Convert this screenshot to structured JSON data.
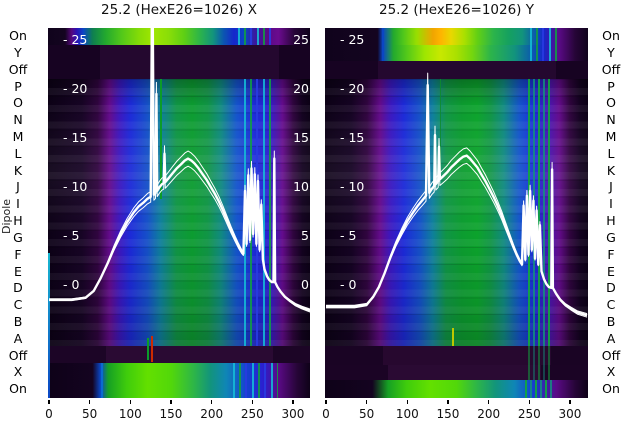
{
  "figure": {
    "background": "#ffffff",
    "ylabel": "Dipole"
  },
  "chart_data": {
    "type": "heatmap+line",
    "row_labels": [
      "On",
      "Y",
      "Off",
      "P",
      "O",
      "N",
      "M",
      "L",
      "K",
      "J",
      "I",
      "H",
      "G",
      "F",
      "E",
      "D",
      "C",
      "B",
      "A",
      "Off",
      "X",
      "On"
    ],
    "x_ticks": [
      0,
      50,
      100,
      150,
      200,
      250,
      300
    ],
    "x_range": [
      0,
      321
    ],
    "y_ticks": [
      25,
      20,
      15,
      10,
      5,
      0
    ],
    "y_tick_prefix": "- ",
    "y_range": [
      -11.3,
      26.4
    ],
    "grid": false,
    "colormap_palette": [
      "#0c0116",
      "#30053f",
      "#640b8c",
      "#1c2ad8",
      "#1550c8",
      "#0e7f9b",
      "#109546",
      "#0c9c30",
      "#63e000",
      "#9fe600",
      "#e8d800",
      "#f0a500"
    ],
    "line_color": "#ffffff",
    "panels": [
      {
        "title": "25.2 (HexE26=1026) X",
        "right_inner_labels": true,
        "line_series": {
          "name": "white-overlay-trace",
          "points": [
            [
              0,
              -1.5
            ],
            [
              28,
              -1.5
            ],
            [
              45,
              -1.3
            ],
            [
              55,
              -0.6
            ],
            [
              63,
              0.6
            ],
            [
              72,
              2.2
            ],
            [
              80,
              3.8
            ],
            [
              88,
              5.2
            ],
            [
              96,
              6.4
            ],
            [
              104,
              7.4
            ],
            [
              110,
              8.0
            ],
            [
              116,
              8.4
            ],
            [
              121,
              8.8
            ],
            [
              125,
              9.0
            ],
            [
              127,
              34
            ],
            [
              129,
              9.2
            ],
            [
              131,
              9.4
            ],
            [
              132,
              19.5
            ],
            [
              133,
              9.6
            ],
            [
              136,
              10.0
            ],
            [
              139,
              10.3
            ],
            [
              141,
              10.4
            ],
            [
              142,
              13.4
            ],
            [
              143,
              10.5
            ],
            [
              147,
              10.9
            ],
            [
              152,
              11.4
            ],
            [
              157,
              11.9
            ],
            [
              162,
              12.3
            ],
            [
              167,
              12.7
            ],
            [
              171,
              12.9
            ],
            [
              175,
              12.7
            ],
            [
              179,
              12.4
            ],
            [
              184,
              11.9
            ],
            [
              189,
              11.3
            ],
            [
              194,
              10.7
            ],
            [
              199,
              10.0
            ],
            [
              204,
              9.3
            ],
            [
              209,
              8.5
            ],
            [
              214,
              7.6
            ],
            [
              219,
              6.6
            ],
            [
              224,
              5.6
            ],
            [
              229,
              4.7
            ],
            [
              233,
              4.0
            ],
            [
              237,
              3.4
            ],
            [
              239,
              3.2
            ],
            [
              241,
              9.6
            ],
            [
              243,
              4.2
            ],
            [
              245,
              11.2
            ],
            [
              247,
              4.6
            ],
            [
              249,
              11.9
            ],
            [
              251,
              5.2
            ],
            [
              253,
              11.3
            ],
            [
              255,
              4.2
            ],
            [
              257,
              10.6
            ],
            [
              259,
              3.6
            ],
            [
              261,
              8.2
            ],
            [
              263,
              2.6
            ],
            [
              265,
              1.6
            ],
            [
              268,
              0.9
            ],
            [
              271,
              0.5
            ],
            [
              274,
              0.3
            ],
            [
              276,
              0.3
            ],
            [
              277,
              12.9
            ],
            [
              278,
              0.3
            ],
            [
              281,
              -0.2
            ],
            [
              285,
              -0.7
            ],
            [
              290,
              -1.2
            ],
            [
              296,
              -1.6
            ],
            [
              303,
              -2.0
            ],
            [
              311,
              -2.3
            ],
            [
              321,
              -2.6
            ]
          ]
        }
      },
      {
        "title": "25.2 (HexE26=1026) Y",
        "right_inner_labels": false,
        "line_series": {
          "name": "white-overlay-trace",
          "points": [
            [
              0,
              -2.2
            ],
            [
              35,
              -2.2
            ],
            [
              50,
              -2.0
            ],
            [
              58,
              -1.2
            ],
            [
              65,
              -0.2
            ],
            [
              72,
              1.2
            ],
            [
              79,
              2.8
            ],
            [
              86,
              4.2
            ],
            [
              93,
              5.4
            ],
            [
              100,
              6.5
            ],
            [
              107,
              7.4
            ],
            [
              113,
              8.1
            ],
            [
              119,
              8.7
            ],
            [
              123,
              9.1
            ],
            [
              125,
              20.4
            ],
            [
              127,
              9.4
            ],
            [
              130,
              9.8
            ],
            [
              133,
              10.1
            ],
            [
              134,
              15.3
            ],
            [
              135,
              10.3
            ],
            [
              138,
              10.6
            ],
            [
              139,
              14.1
            ],
            [
              140,
              10.8
            ],
            [
              144,
              11.1
            ],
            [
              149,
              11.5
            ],
            [
              154,
              12.0
            ],
            [
              159,
              12.4
            ],
            [
              164,
              12.8
            ],
            [
              169,
              13.1
            ],
            [
              173,
              13.2
            ],
            [
              177,
              12.9
            ],
            [
              181,
              12.5
            ],
            [
              186,
              12.0
            ],
            [
              191,
              11.3
            ],
            [
              196,
              10.6
            ],
            [
              201,
              9.8
            ],
            [
              206,
              9.0
            ],
            [
              211,
              8.1
            ],
            [
              216,
              7.1
            ],
            [
              221,
              6.0
            ],
            [
              226,
              4.9
            ],
            [
              230,
              4.0
            ],
            [
              234,
              3.2
            ],
            [
              238,
              2.5
            ],
            [
              241,
              2.1
            ],
            [
              243,
              8.1
            ],
            [
              245,
              2.6
            ],
            [
              247,
              9.1
            ],
            [
              249,
              3.1
            ],
            [
              251,
              9.6
            ],
            [
              253,
              3.6
            ],
            [
              255,
              8.6
            ],
            [
              257,
              2.7
            ],
            [
              259,
              7.6
            ],
            [
              261,
              2.1
            ],
            [
              263,
              6.1
            ],
            [
              265,
              1.4
            ],
            [
              268,
              0.6
            ],
            [
              271,
              0.1
            ],
            [
              274,
              -0.2
            ],
            [
              277,
              -0.3
            ],
            [
              278,
              11.8
            ],
            [
              279,
              -0.3
            ],
            [
              283,
              -0.9
            ],
            [
              288,
              -1.5
            ],
            [
              294,
              -2.0
            ],
            [
              301,
              -2.4
            ],
            [
              309,
              -2.8
            ],
            [
              321,
              -3.1
            ]
          ]
        }
      }
    ]
  }
}
